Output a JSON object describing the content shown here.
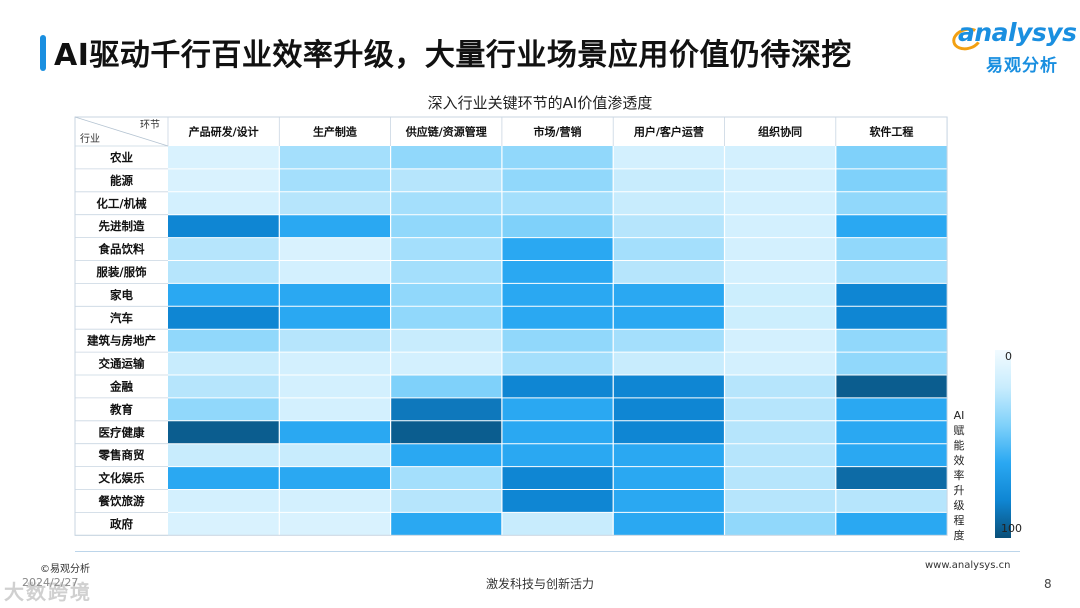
{
  "header": {
    "title": "AI驱动千行百业效率升级，大量行业场景应用价值仍待深挖"
  },
  "logo": {
    "word": "analysys",
    "cn": "易观分析"
  },
  "colors": {
    "accent": "#1a8fe0",
    "logo_orange": "#f2a012",
    "scale": [
      "#f2fbff",
      "#c8ecfd",
      "#7fd1fa",
      "#2aa8f2",
      "#0f86d3",
      "#0a4f78"
    ]
  },
  "chart_data": {
    "type": "heatmap",
    "title": "深入行业关键环节的AI价值渗透度",
    "corner_col_label": "环节",
    "corner_row_label": "行业",
    "columns": [
      "产品研发/设计",
      "生产制造",
      "供应链/资源管理",
      "市场/营销",
      "用户/客户运营",
      "组织协同",
      "软件工程"
    ],
    "rows": [
      "农业",
      "能源",
      "化工/机械",
      "先进制造",
      "食品饮料",
      "服装/服饰",
      "家电",
      "汽车",
      "建筑与房地产",
      "交通运输",
      "金融",
      "教育",
      "医疗健康",
      "零售商贸",
      "文化娱乐",
      "餐饮旅游",
      "政府"
    ],
    "values": [
      [
        12,
        30,
        35,
        35,
        15,
        15,
        40
      ],
      [
        12,
        30,
        25,
        35,
        20,
        15,
        40
      ],
      [
        15,
        25,
        30,
        30,
        20,
        15,
        35
      ],
      [
        80,
        60,
        35,
        40,
        25,
        15,
        60
      ],
      [
        25,
        12,
        30,
        60,
        30,
        15,
        35
      ],
      [
        25,
        15,
        30,
        60,
        25,
        15,
        30
      ],
      [
        60,
        60,
        35,
        60,
        60,
        18,
        80
      ],
      [
        80,
        60,
        35,
        60,
        60,
        18,
        80
      ],
      [
        35,
        25,
        20,
        35,
        30,
        15,
        35
      ],
      [
        20,
        15,
        15,
        30,
        20,
        15,
        35
      ],
      [
        25,
        15,
        40,
        80,
        80,
        25,
        95
      ],
      [
        35,
        15,
        85,
        60,
        80,
        25,
        60
      ],
      [
        95,
        60,
        95,
        60,
        80,
        25,
        60
      ],
      [
        20,
        20,
        60,
        60,
        60,
        25,
        60
      ],
      [
        60,
        60,
        30,
        80,
        60,
        25,
        90
      ],
      [
        15,
        15,
        25,
        80,
        60,
        25,
        25
      ],
      [
        12,
        12,
        60,
        20,
        60,
        35,
        60
      ]
    ],
    "scale_min": 0,
    "scale_max": 100,
    "legend_label": "AI赋能效率升级程度",
    "legend_min_label": "0",
    "legend_max_label": "100"
  },
  "footer": {
    "source": "©易观分析",
    "date": "2024/2/27",
    "slogan": "激发科技与创新活力",
    "website": "www.analysys.cn",
    "page": "8",
    "watermark": "大数跨境"
  }
}
